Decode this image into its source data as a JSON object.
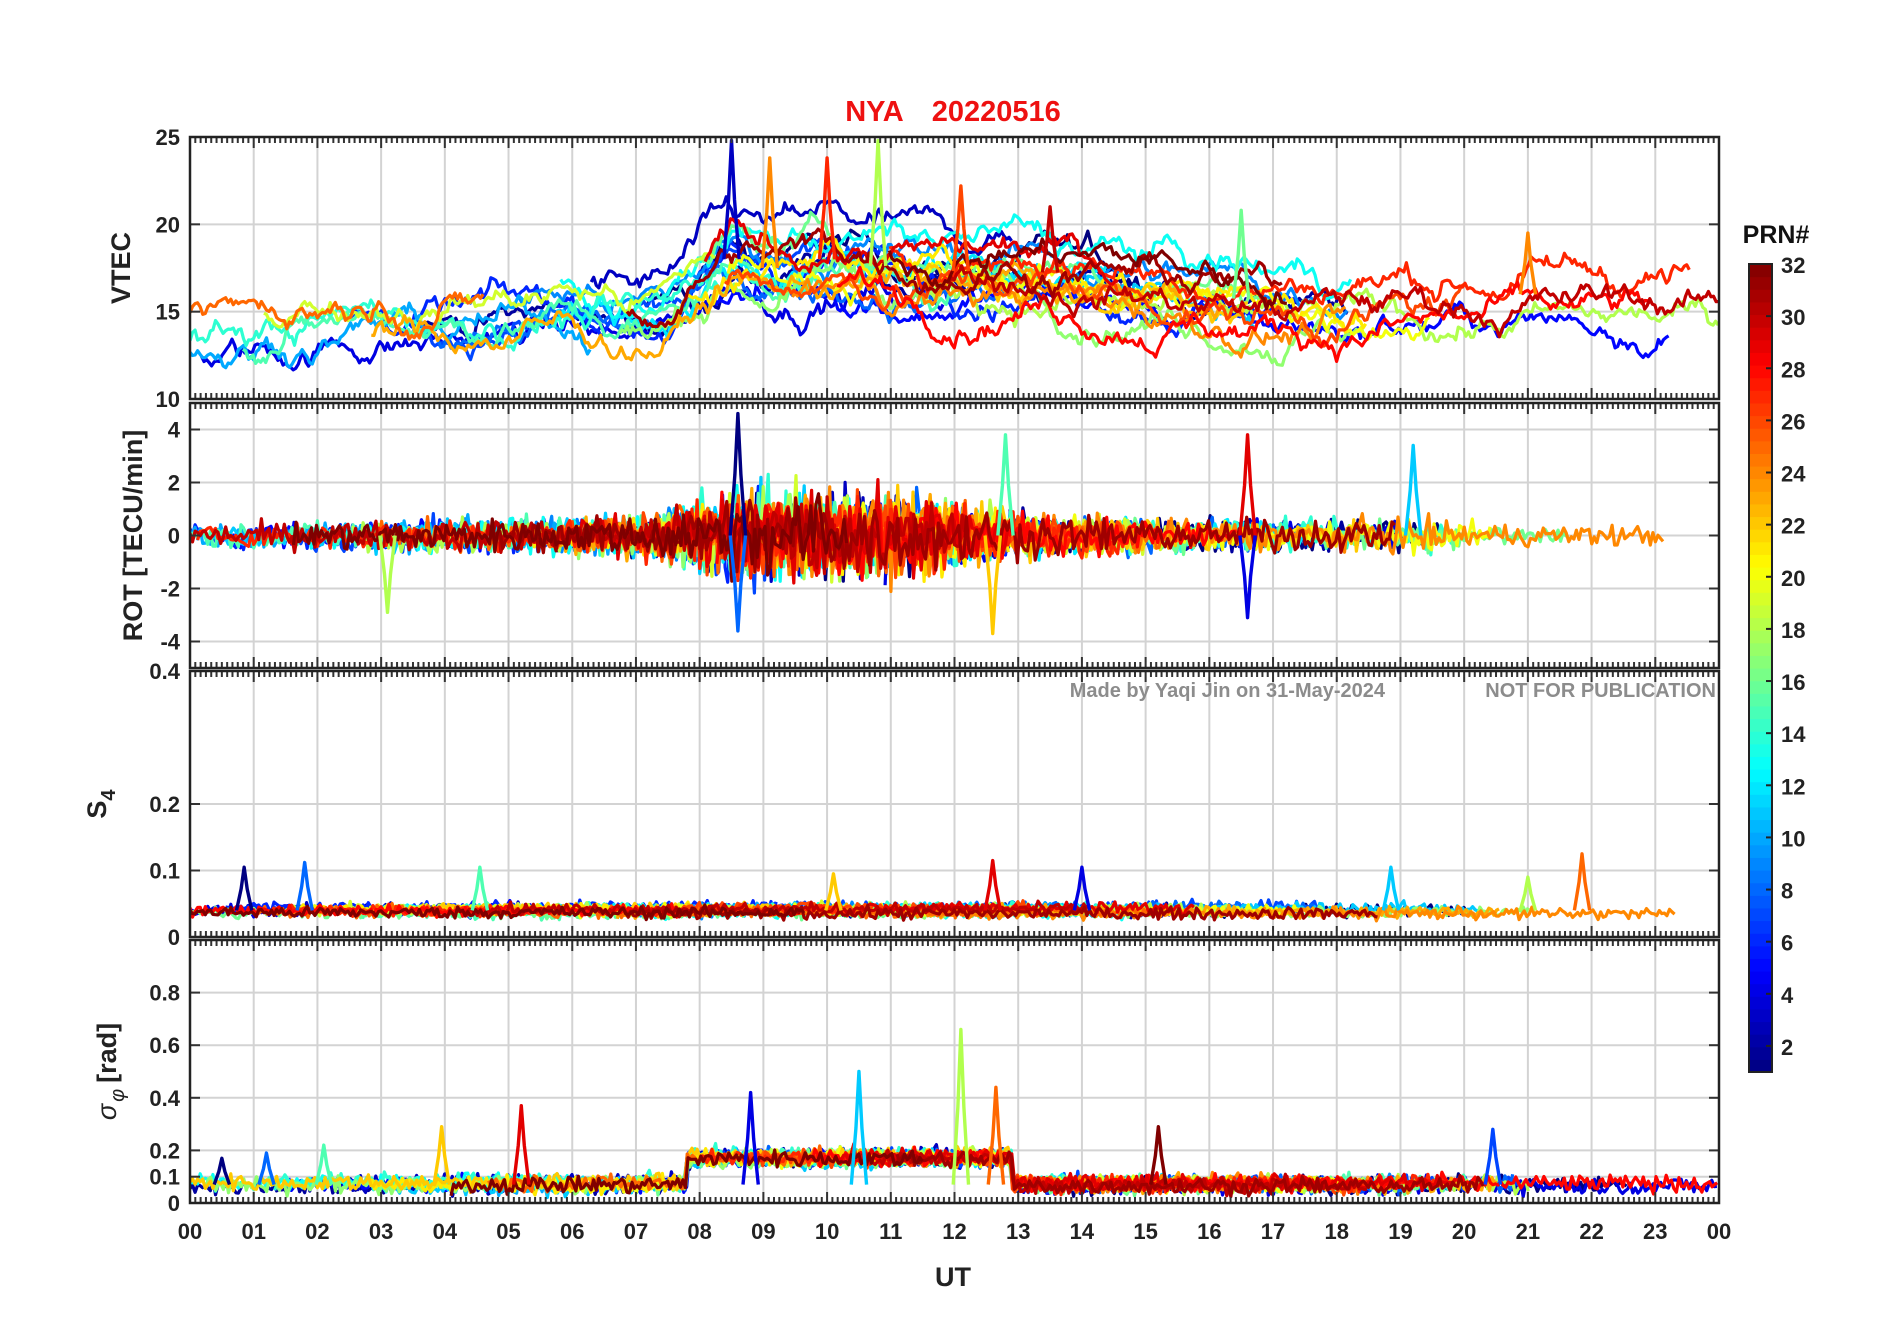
{
  "figure": {
    "station": "NYA",
    "date": "20220516",
    "xlabel": "UT",
    "watermark_left": "Made by Yaqi Jin on 31-May-2024",
    "watermark_right": "NOT FOR PUBLICATION",
    "colorbar": {
      "title": "PRN#",
      "ticks": [
        "2",
        "4",
        "6",
        "8",
        "10",
        "12",
        "14",
        "16",
        "18",
        "20",
        "22",
        "24",
        "26",
        "28",
        "30",
        "32"
      ],
      "min": 1,
      "max": 32,
      "colormap": "jet"
    }
  },
  "chart_data": [
    {
      "type": "line",
      "panel": "VTEC",
      "ylabel": "VTEC",
      "ylim": [
        10,
        25
      ],
      "yticks": [
        "10",
        "15",
        "20",
        "25"
      ],
      "xlim": [
        "00",
        "00"
      ],
      "xticks": [
        "00",
        "01",
        "02",
        "03",
        "04",
        "05",
        "06",
        "07",
        "08",
        "09",
        "10",
        "11",
        "12",
        "13",
        "14",
        "15",
        "16",
        "17",
        "18",
        "19",
        "20",
        "21",
        "22",
        "23",
        "00"
      ],
      "grid": true,
      "series_by": "PRN (1-32), colored by colorbar",
      "baseline_profile": {
        "x_hours": [
          0,
          1,
          2,
          3,
          4,
          5,
          6,
          7,
          7.5,
          8,
          8.5,
          9,
          9.5,
          10,
          10.5,
          11,
          11.5,
          12,
          13,
          14,
          15,
          16,
          17,
          18,
          19,
          20,
          21,
          22,
          23,
          24
        ],
        "y": [
          13.5,
          13.8,
          14.5,
          15.0,
          14.8,
          15.0,
          15.3,
          14.5,
          14.8,
          16.5,
          18.0,
          17.5,
          17.5,
          18.0,
          17.8,
          17.5,
          17.2,
          17.3,
          17.5,
          17.0,
          16.5,
          16.0,
          15.5,
          15.5,
          15.8,
          15.8,
          16.0,
          15.8,
          16.0,
          15.5
        ]
      },
      "peaks": [
        {
          "x_hour": 8.5,
          "y": 24.8,
          "prn_approx": 3
        },
        {
          "x_hour": 9.1,
          "y": 23.8,
          "prn_approx": 24
        },
        {
          "x_hour": 10.0,
          "y": 23.8,
          "prn_approx": 27
        },
        {
          "x_hour": 10.8,
          "y": 24.8,
          "prn_approx": 18
        },
        {
          "x_hour": 12.1,
          "y": 22.2,
          "prn_approx": 26
        },
        {
          "x_hour": 13.5,
          "y": 21.0,
          "prn_approx": 30
        },
        {
          "x_hour": 16.5,
          "y": 20.8,
          "prn_approx": 16
        },
        {
          "x_hour": 21.0,
          "y": 19.5,
          "prn_approx": 24
        }
      ]
    },
    {
      "type": "line",
      "panel": "ROT",
      "ylabel": "ROT [TECU/min]",
      "ylim": [
        -5,
        5
      ],
      "yticks": [
        "-4",
        "-2",
        "0",
        "2",
        "4"
      ],
      "grid": true,
      "baseline_profile": {
        "x_hours": [
          0,
          3,
          6,
          7,
          8,
          9,
          10,
          11,
          12,
          13,
          14,
          15,
          16,
          17,
          18,
          19,
          20,
          21,
          22,
          23,
          24
        ],
        "amplitude": [
          0.5,
          0.7,
          0.8,
          0.9,
          1.6,
          2.0,
          1.9,
          1.8,
          1.6,
          1.0,
          0.9,
          0.8,
          0.7,
          0.7,
          0.7,
          0.8,
          0.6,
          0.5,
          0.5,
          0.5,
          0.5
        ]
      },
      "spikes": [
        {
          "x_hour": 8.6,
          "y": 4.6
        },
        {
          "x_hour": 8.6,
          "y": -3.6
        },
        {
          "x_hour": 12.8,
          "y": 3.8
        },
        {
          "x_hour": 12.6,
          "y": -3.7
        },
        {
          "x_hour": 16.6,
          "y": 3.8
        },
        {
          "x_hour": 16.6,
          "y": -3.1
        },
        {
          "x_hour": 19.2,
          "y": 3.4
        },
        {
          "x_hour": 3.1,
          "y": -2.9
        }
      ]
    },
    {
      "type": "line",
      "panel": "S4",
      "ylabel": "S4",
      "ylim": [
        0,
        0.4
      ],
      "yticks": [
        "0",
        "0.1",
        "0.2",
        "0.4"
      ],
      "grid": true,
      "baseline": 0.04,
      "peaks": [
        {
          "x_hour": 0.85,
          "y": 0.105
        },
        {
          "x_hour": 1.8,
          "y": 0.112
        },
        {
          "x_hour": 4.55,
          "y": 0.105
        },
        {
          "x_hour": 10.1,
          "y": 0.095
        },
        {
          "x_hour": 12.6,
          "y": 0.115
        },
        {
          "x_hour": 14.0,
          "y": 0.105
        },
        {
          "x_hour": 18.85,
          "y": 0.105
        },
        {
          "x_hour": 21.0,
          "y": 0.09
        },
        {
          "x_hour": 21.85,
          "y": 0.125
        }
      ]
    },
    {
      "type": "line",
      "panel": "sigma_phi",
      "ylabel": "σ φ [rad]",
      "ylim": [
        0,
        1
      ],
      "yticks": [
        "0",
        "0.1",
        "0.2",
        "0.4",
        "0.6",
        "0.8"
      ],
      "grid": true,
      "baseline": 0.07,
      "active_interval": {
        "x_hours": [
          7.8,
          12.9
        ],
        "level": 0.17
      },
      "peaks": [
        {
          "x_hour": 0.5,
          "y": 0.17
        },
        {
          "x_hour": 1.2,
          "y": 0.19
        },
        {
          "x_hour": 2.1,
          "y": 0.22
        },
        {
          "x_hour": 3.95,
          "y": 0.29
        },
        {
          "x_hour": 5.2,
          "y": 0.37
        },
        {
          "x_hour": 8.8,
          "y": 0.42
        },
        {
          "x_hour": 10.5,
          "y": 0.5
        },
        {
          "x_hour": 12.1,
          "y": 0.66
        },
        {
          "x_hour": 12.65,
          "y": 0.44
        },
        {
          "x_hour": 15.2,
          "y": 0.29
        },
        {
          "x_hour": 20.45,
          "y": 0.28
        }
      ]
    }
  ]
}
